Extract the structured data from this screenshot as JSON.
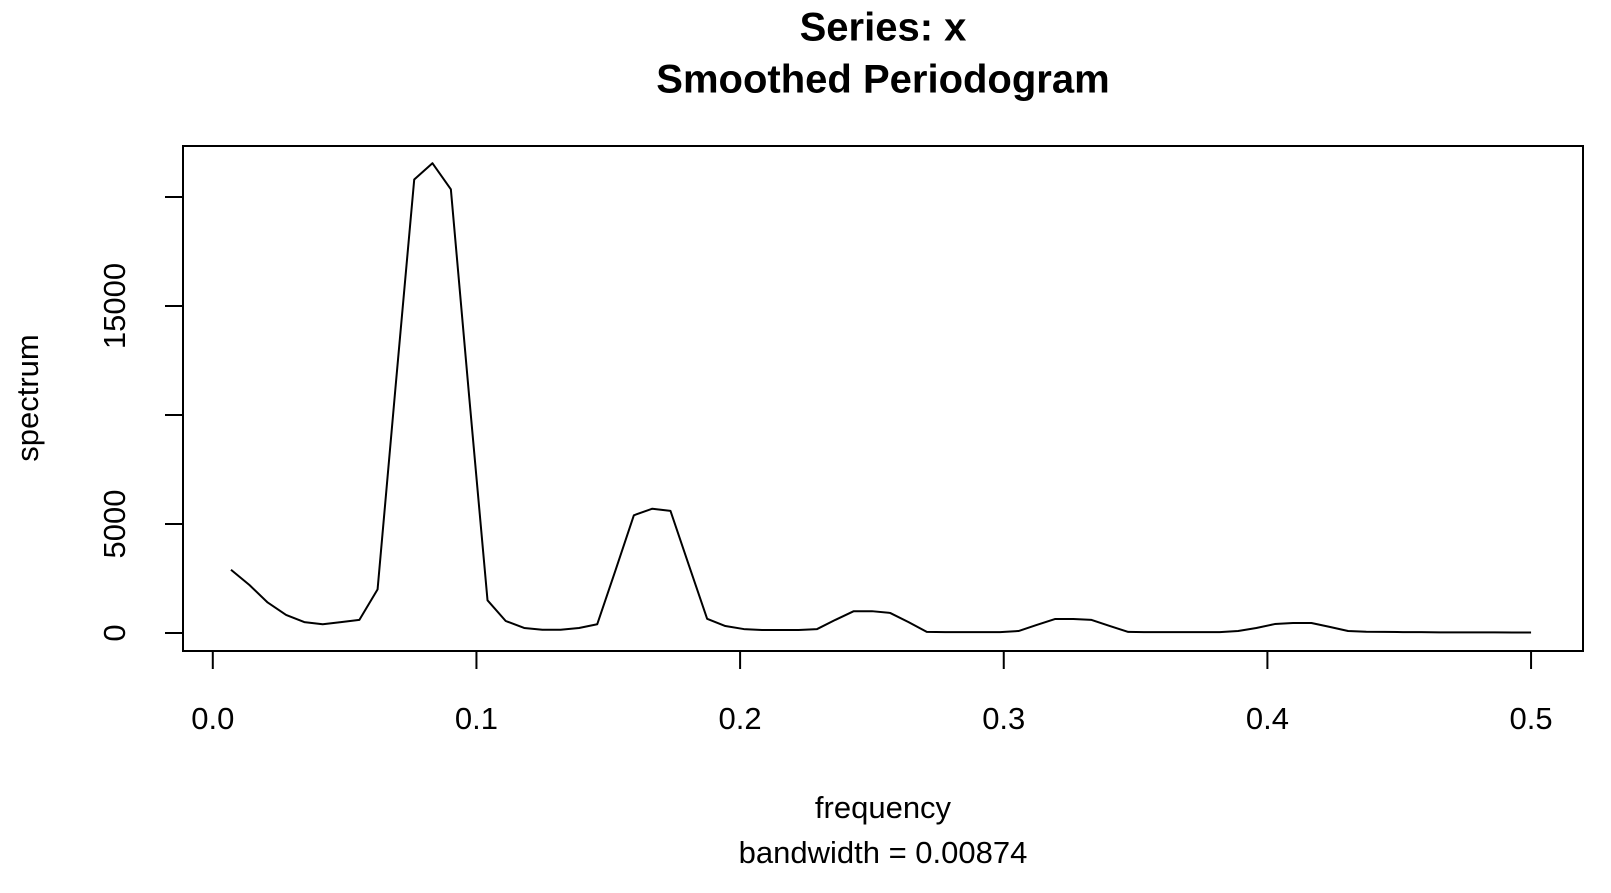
{
  "chart_data": {
    "type": "line",
    "title": "Series: x",
    "subtitle": "Smoothed Periodogram",
    "x_label": "frequency",
    "x_sublabel": "bandwidth = 0.00874",
    "y_label": "spectrum",
    "color": "#000000",
    "x": [
      0.0069,
      0.0139,
      0.0208,
      0.0278,
      0.0347,
      0.0417,
      0.0486,
      0.0556,
      0.0625,
      0.0694,
      0.0764,
      0.0833,
      0.0903,
      0.0972,
      0.1042,
      0.1111,
      0.1181,
      0.125,
      0.1319,
      0.1389,
      0.1458,
      0.1528,
      0.1597,
      0.1667,
      0.1736,
      0.1806,
      0.1875,
      0.1944,
      0.2014,
      0.2083,
      0.2153,
      0.2222,
      0.2292,
      0.2361,
      0.2431,
      0.25,
      0.2569,
      0.2639,
      0.2708,
      0.2778,
      0.2847,
      0.2917,
      0.2986,
      0.3056,
      0.3125,
      0.3194,
      0.3264,
      0.3333,
      0.3403,
      0.3472,
      0.3542,
      0.3611,
      0.3681,
      0.375,
      0.3819,
      0.3889,
      0.3958,
      0.4028,
      0.4097,
      0.4167,
      0.4236,
      0.4306,
      0.4375,
      0.4444,
      0.4514,
      0.4583,
      0.4653,
      0.4722,
      0.4792,
      0.4861,
      0.4931,
      0.5
    ],
    "values": [
      2900,
      2200,
      1400,
      830,
      500,
      400,
      500,
      600,
      2000,
      11400,
      20800,
      21550,
      20350,
      10900,
      1500,
      550,
      230,
      150,
      150,
      230,
      400,
      2900,
      5400,
      5700,
      5600,
      3100,
      650,
      320,
      180,
      140,
      140,
      140,
      180,
      600,
      1000,
      1000,
      920,
      500,
      50,
      40,
      40,
      40,
      40,
      90,
      370,
      640,
      640,
      600,
      320,
      50,
      40,
      40,
      40,
      40,
      40,
      90,
      230,
      410,
      460,
      460,
      280,
      90,
      60,
      50,
      40,
      40,
      30,
      30,
      30,
      30,
      20,
      20
    ],
    "xlim": [
      -0.0113,
      0.5197
    ],
    "ylim": [
      -826,
      22339
    ],
    "xticks": [
      {
        "value": 0,
        "label": "0.0"
      },
      0.1,
      0.2,
      0.3,
      0.4,
      0.5
    ],
    "yticks": [
      0,
      5000,
      {
        "value": 10000,
        "label": null
      },
      15000,
      {
        "value": 20000,
        "label": null
      }
    ]
  }
}
